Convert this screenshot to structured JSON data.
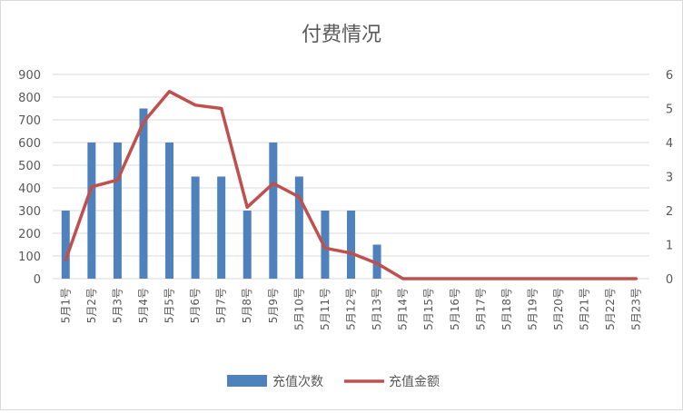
{
  "chart_data": {
    "type": "bar",
    "title": "付费情况",
    "categories": [
      "5月1号",
      "5月2号",
      "5月3号",
      "5月4号",
      "5月5号",
      "5月6号",
      "5月7号",
      "5月8号",
      "5月9号",
      "5月10号",
      "5月11号",
      "5月12号",
      "5月13号",
      "5月14号",
      "5月15号",
      "5月16号",
      "5月17号",
      "5月18号",
      "5月19号",
      "5月20号",
      "5月21号",
      "5月22号",
      "5月23号"
    ],
    "series": [
      {
        "name": "充值次数",
        "type": "bar",
        "axis": "left",
        "color": "#4f81bd",
        "values": [
          300,
          600,
          600,
          750,
          600,
          450,
          450,
          300,
          600,
          450,
          300,
          300,
          150,
          0,
          0,
          0,
          0,
          0,
          0,
          0,
          0,
          0,
          0
        ]
      },
      {
        "name": "充值金额",
        "type": "line",
        "axis": "right",
        "color": "#c0504d",
        "values": [
          0.55,
          2.7,
          2.9,
          4.6,
          5.5,
          5.1,
          5.0,
          2.1,
          2.8,
          2.4,
          0.9,
          0.75,
          0.45,
          0,
          0,
          0,
          0,
          0,
          0,
          0,
          0,
          0,
          0
        ]
      }
    ],
    "ylim_left": [
      0,
      900
    ],
    "yticks_left": [
      "0",
      "100",
      "200",
      "300",
      "400",
      "500",
      "600",
      "700",
      "800",
      "900"
    ],
    "ylim_right": [
      0,
      6
    ],
    "yticks_right": [
      "0",
      "1",
      "2",
      "3",
      "4",
      "5",
      "6"
    ],
    "grid": true,
    "legend": "bottom"
  }
}
